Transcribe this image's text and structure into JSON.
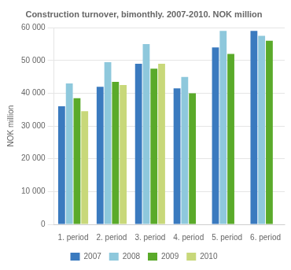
{
  "chart_data": {
    "type": "bar",
    "title": "Construction turnover, bimonthly. 2007-2010. NOK million",
    "ylabel": "NOK million",
    "categories": [
      "1. period",
      "2. period",
      "3. period",
      "4. period",
      "5. period",
      "6. period"
    ],
    "series": [
      {
        "name": "2007",
        "color": "#3A7ABF",
        "values": [
          36000,
          42000,
          49000,
          41500,
          54000,
          59000
        ]
      },
      {
        "name": "2008",
        "color": "#8EC8DC",
        "values": [
          43000,
          49500,
          55000,
          45000,
          59000,
          57500
        ]
      },
      {
        "name": "2009",
        "color": "#5AAA2A",
        "values": [
          38500,
          43500,
          47500,
          40000,
          52000,
          56000
        ]
      },
      {
        "name": "2010",
        "color": "#C8D87A",
        "values": [
          34500,
          42500,
          49000,
          0,
          0,
          0
        ]
      }
    ],
    "ylim": [
      0,
      60000
    ],
    "yticks": [
      0,
      {
        "value": 10000,
        "label": "10 000"
      },
      {
        "value": 20000,
        "label": "20 000"
      },
      {
        "value": 30000,
        "label": "30 000"
      },
      {
        "value": 40000,
        "label": "40 000"
      },
      {
        "value": 50000,
        "label": "50 000"
      },
      {
        "value": 60000,
        "label": "60 000"
      }
    ],
    "grid": true,
    "legend": "bottom"
  }
}
